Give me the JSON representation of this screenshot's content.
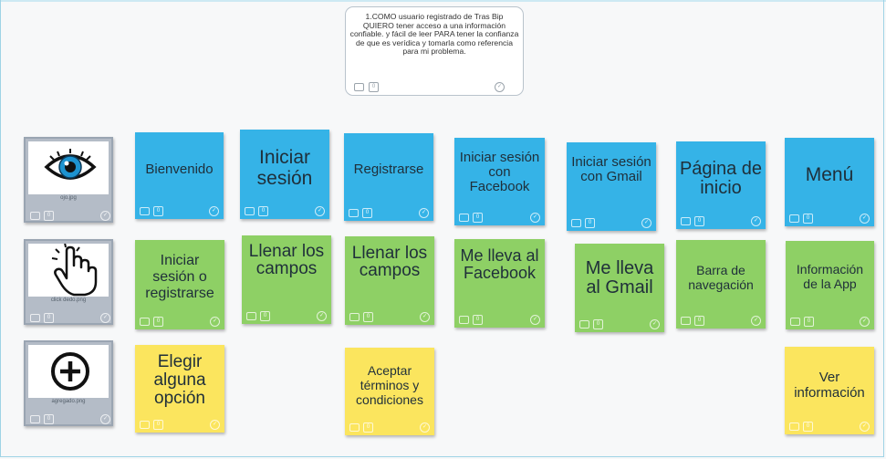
{
  "story": {
    "text": "1.COMO usuario registrado de Tras Bip QUIERO tener acceso a una información confiable. y fácil de leer PARA tener la confianza de que es verídica y tomarla como referencia para mi problema.",
    "count": "0"
  },
  "images": [
    {
      "filename": "ojo.jpg",
      "icon": "eye-icon",
      "count": "0"
    },
    {
      "filename": "click dedo.png",
      "icon": "tap-hand-icon",
      "count": "0"
    },
    {
      "filename": "agregado.png",
      "icon": "plus-circle-icon",
      "count": "0"
    }
  ],
  "cards": {
    "row1": [
      {
        "label": "Bienvenido",
        "color": "#35b3e7"
      },
      {
        "label": "Iniciar sesión",
        "color": "#35b3e7"
      },
      {
        "label": "Registrarse",
        "color": "#35b3e7"
      },
      {
        "label": "Iniciar sesión con Facebook",
        "color": "#35b3e7"
      },
      {
        "label": "Iniciar sesión con Gmail",
        "color": "#35b3e7"
      },
      {
        "label": "Página de inicio",
        "color": "#35b3e7"
      },
      {
        "label": "Menú",
        "color": "#35b3e7"
      }
    ],
    "row2": [
      {
        "label": "Iniciar sesión o registrarse",
        "color": "#8ed065"
      },
      {
        "label": "Llenar los campos",
        "color": "#8ed065"
      },
      {
        "label": "Llenar los campos",
        "color": "#8ed065"
      },
      {
        "label": "Me lleva al Facebook",
        "color": "#8ed065"
      },
      {
        "label": "Me lleva al Gmail",
        "color": "#8ed065"
      },
      {
        "label": "Barra de navegación",
        "color": "#8ed065"
      },
      {
        "label": "Información de la App",
        "color": "#8ed065"
      }
    ],
    "row3": [
      {
        "label": "Elegir alguna opción",
        "color": "#fbe55e"
      },
      {
        "label": "Aceptar términos y condiciones",
        "color": "#fbe55e"
      },
      {
        "label": "Ver información",
        "color": "#fbe55e"
      }
    ]
  },
  "card_count": "0"
}
